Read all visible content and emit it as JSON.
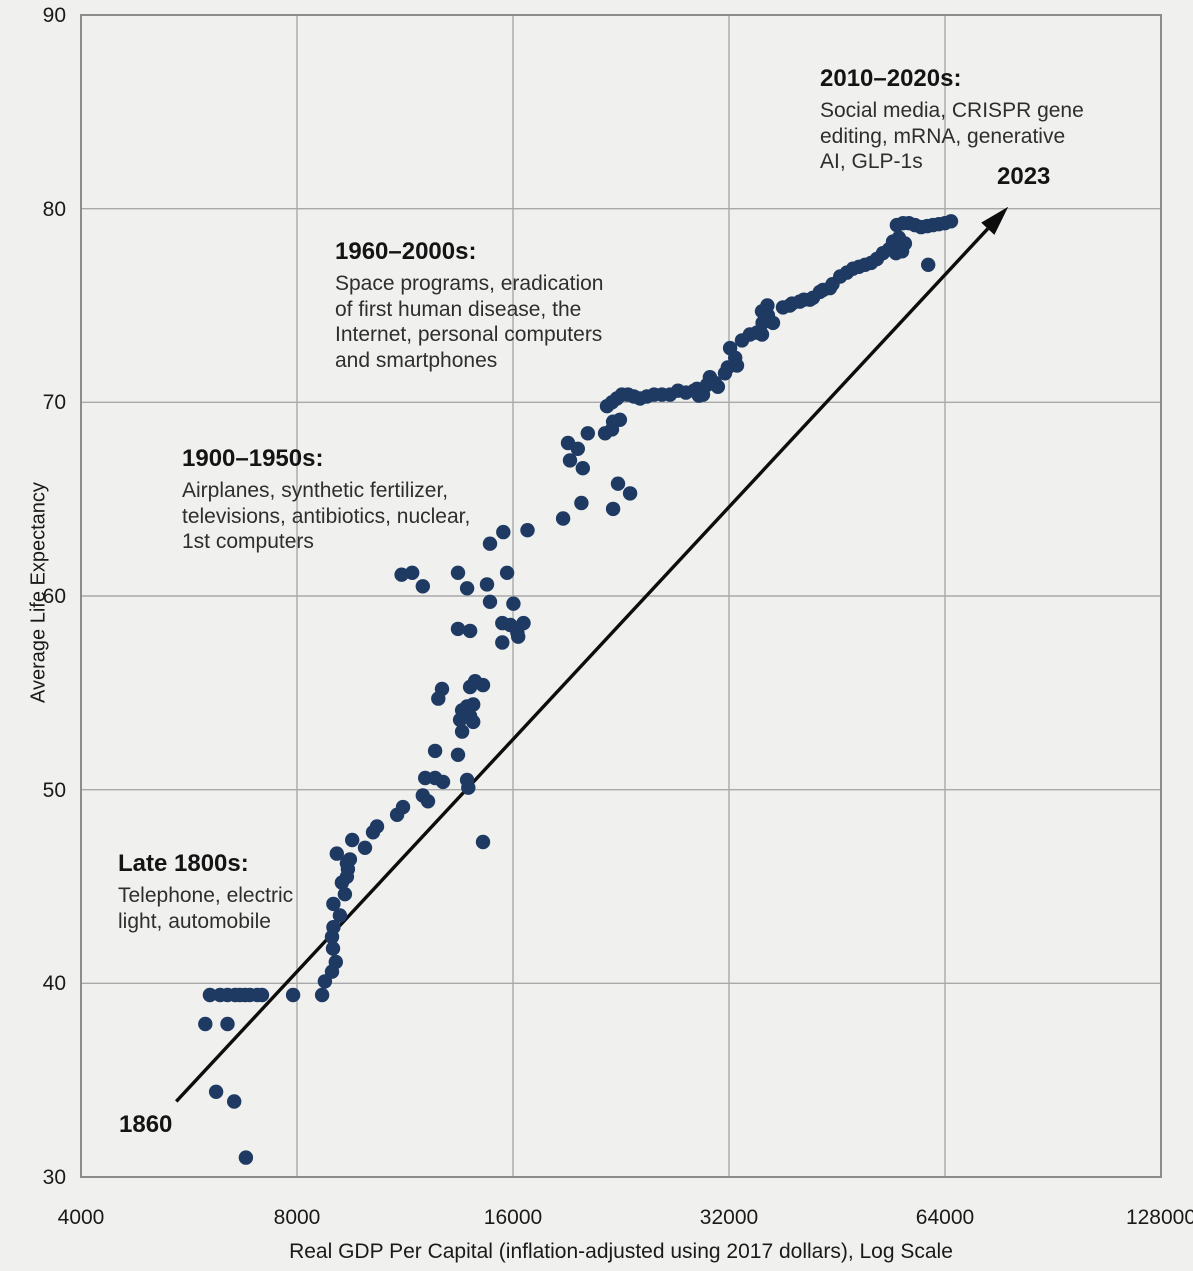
{
  "page": {
    "background": "#f0f0ee"
  },
  "chart_data": {
    "type": "scatter",
    "title": "",
    "xlabel": "Real GDP Per Capital (inflation-adjusted using 2017 dollars), Log Scale",
    "ylabel": "Average Life Expectancy",
    "x_scale": "log2",
    "xlim": [
      4000,
      128000
    ],
    "ylim": [
      30,
      90
    ],
    "grid": true,
    "x_ticks": [
      4000,
      8000,
      16000,
      32000,
      64000,
      128000
    ],
    "x_tick_labels": [
      "4000",
      "8000",
      "16000",
      "32000",
      "64000",
      "128000"
    ],
    "y_ticks": [
      30,
      40,
      50,
      60,
      70,
      80,
      90
    ],
    "y_tick_labels": [
      "30",
      "40",
      "50",
      "60",
      "70",
      "80",
      "90"
    ],
    "colors": {
      "background": "#f0f0ee",
      "gridline": "#a9a9a9",
      "border": "#8c8c8c",
      "point": "#1e3a63",
      "arrow": "#0d0d0d",
      "text": "#1a1a1a"
    },
    "point_radius": 7.2,
    "points": [
      [
        6050,
        39.4
      ],
      [
        6250,
        39.4
      ],
      [
        6400,
        39.4
      ],
      [
        6560,
        39.4
      ],
      [
        6660,
        39.4
      ],
      [
        6770,
        39.4
      ],
      [
        6880,
        39.4
      ],
      [
        7040,
        39.4
      ],
      [
        7150,
        39.4
      ],
      [
        7900,
        39.4
      ],
      [
        8670,
        39.4
      ],
      [
        5960,
        37.9
      ],
      [
        6400,
        37.9
      ],
      [
        6170,
        34.4
      ],
      [
        6540,
        33.9
      ],
      [
        6790,
        31.0
      ],
      [
        8750,
        40.1
      ],
      [
        8950,
        40.6
      ],
      [
        9060,
        41.1
      ],
      [
        8980,
        41.8
      ],
      [
        8950,
        42.4
      ],
      [
        8990,
        42.9
      ],
      [
        9180,
        43.5
      ],
      [
        8990,
        44.1
      ],
      [
        9330,
        44.6
      ],
      [
        9240,
        45.2
      ],
      [
        9390,
        45.5
      ],
      [
        9420,
        45.9
      ],
      [
        9390,
        46.2
      ],
      [
        9480,
        46.4
      ],
      [
        9090,
        46.7
      ],
      [
        9950,
        47.0
      ],
      [
        9550,
        47.4
      ],
      [
        10210,
        47.8
      ],
      [
        10340,
        48.1
      ],
      [
        11030,
        48.7
      ],
      [
        11240,
        49.1
      ],
      [
        11980,
        49.7
      ],
      [
        12180,
        49.4
      ],
      [
        12070,
        50.6
      ],
      [
        12460,
        50.6
      ],
      [
        12780,
        50.4
      ],
      [
        13810,
        50.5
      ],
      [
        13860,
        50.1
      ],
      [
        12460,
        52.0
      ],
      [
        13410,
        51.8
      ],
      [
        13590,
        53.0
      ],
      [
        13500,
        53.6
      ],
      [
        13940,
        53.8
      ],
      [
        14080,
        53.5
      ],
      [
        13590,
        54.1
      ],
      [
        13810,
        54.3
      ],
      [
        14080,
        54.4
      ],
      [
        12590,
        54.7
      ],
      [
        12740,
        55.2
      ],
      [
        13940,
        55.3
      ],
      [
        14170,
        55.6
      ],
      [
        14530,
        55.4
      ],
      [
        14530,
        47.3
      ],
      [
        13410,
        58.3
      ],
      [
        13940,
        58.2
      ],
      [
        15460,
        58.6
      ],
      [
        15860,
        58.5
      ],
      [
        16550,
        58.6
      ],
      [
        16230,
        58.1
      ],
      [
        16270,
        57.9
      ],
      [
        15460,
        57.6
      ],
      [
        14860,
        59.7
      ],
      [
        16020,
        59.6
      ],
      [
        11190,
        61.1
      ],
      [
        11580,
        61.2
      ],
      [
        11980,
        60.5
      ],
      [
        13410,
        61.2
      ],
      [
        13810,
        60.4
      ],
      [
        14720,
        60.6
      ],
      [
        15700,
        61.2
      ],
      [
        14860,
        62.7
      ],
      [
        15510,
        63.3
      ],
      [
        16760,
        63.4
      ],
      [
        18790,
        64.0
      ],
      [
        19930,
        64.8
      ],
      [
        22060,
        64.5
      ],
      [
        22410,
        65.8
      ],
      [
        23300,
        65.3
      ],
      [
        19090,
        67.9
      ],
      [
        19700,
        67.6
      ],
      [
        19210,
        67.0
      ],
      [
        20020,
        66.6
      ],
      [
        20340,
        68.4
      ],
      [
        21500,
        68.4
      ],
      [
        21980,
        68.6
      ],
      [
        22060,
        69.0
      ],
      [
        22550,
        69.1
      ],
      [
        21630,
        69.8
      ],
      [
        21980,
        70.0
      ],
      [
        22330,
        70.2
      ],
      [
        22690,
        70.4
      ],
      [
        23140,
        70.4
      ],
      [
        23590,
        70.3
      ],
      [
        24050,
        70.2
      ],
      [
        24590,
        70.3
      ],
      [
        25160,
        70.4
      ],
      [
        25810,
        70.4
      ],
      [
        26480,
        70.4
      ],
      [
        27170,
        70.6
      ],
      [
        27870,
        70.5
      ],
      [
        28600,
        70.6
      ],
      [
        29050,
        70.35
      ],
      [
        28880,
        70.7
      ],
      [
        29440,
        70.4
      ],
      [
        29820,
        70.9
      ],
      [
        30100,
        71.3
      ],
      [
        30590,
        71.0
      ],
      [
        30880,
        70.8
      ],
      [
        31590,
        71.5
      ],
      [
        31880,
        71.8
      ],
      [
        32830,
        71.9
      ],
      [
        32640,
        72.3
      ],
      [
        32110,
        72.8
      ],
      [
        33360,
        73.2
      ],
      [
        34220,
        73.5
      ],
      [
        35010,
        73.6
      ],
      [
        35570,
        73.5
      ],
      [
        35640,
        74.1
      ],
      [
        36260,
        74.5
      ],
      [
        35570,
        74.7
      ],
      [
        36200,
        75.0
      ],
      [
        36850,
        74.1
      ],
      [
        38050,
        74.9
      ],
      [
        38900,
        75.0
      ],
      [
        39170,
        75.1
      ],
      [
        40160,
        75.2
      ],
      [
        40700,
        75.3
      ],
      [
        41480,
        75.3
      ],
      [
        41900,
        75.4
      ],
      [
        42840,
        75.7
      ],
      [
        43270,
        75.8
      ],
      [
        44240,
        75.9
      ],
      [
        44600,
        76.1
      ],
      [
        45720,
        76.5
      ],
      [
        46720,
        76.7
      ],
      [
        47640,
        76.9
      ],
      [
        48560,
        77.0
      ],
      [
        49520,
        77.1
      ],
      [
        50480,
        77.2
      ],
      [
        51440,
        77.4
      ],
      [
        52440,
        77.7
      ],
      [
        53480,
        77.9
      ],
      [
        54160,
        78.3
      ],
      [
        55200,
        78.5
      ],
      [
        56280,
        78.2
      ],
      [
        55760,
        77.8
      ],
      [
        54680,
        77.7
      ],
      [
        54840,
        79.15
      ],
      [
        55940,
        79.25
      ],
      [
        57000,
        79.25
      ],
      [
        58120,
        79.15
      ],
      [
        59280,
        79.05
      ],
      [
        60440,
        79.1
      ],
      [
        61560,
        79.15
      ],
      [
        62760,
        79.2
      ],
      [
        64000,
        79.25
      ],
      [
        65240,
        79.35
      ],
      [
        60640,
        77.1
      ]
    ],
    "trend_arrow": {
      "from": {
        "gdp": 5430,
        "le": 33.9
      },
      "to": {
        "gdp": 78400,
        "le": 80.1
      },
      "start_label": "1860",
      "end_label": "2023"
    },
    "annotations": {
      "era2010": {
        "title": "2010–2020s:",
        "lines": [
          "Social media, CRISPR gene",
          "editing, mRNA, generative",
          "AI, GLP-1s"
        ]
      },
      "era1960": {
        "title": "1960–2000s:",
        "lines": [
          "Space programs, eradication",
          "of first human disease, the",
          "Internet, personal computers",
          "and smartphones"
        ]
      },
      "era1900": {
        "title": "1900–1950s:",
        "lines": [
          "Airplanes, synthetic fertilizer,",
          "televisions, antibiotics, nuclear,",
          "1st computers"
        ]
      },
      "late1800": {
        "title": "Late 1800s:",
        "lines": [
          "Telephone, electric",
          "light, automobile"
        ]
      }
    }
  }
}
